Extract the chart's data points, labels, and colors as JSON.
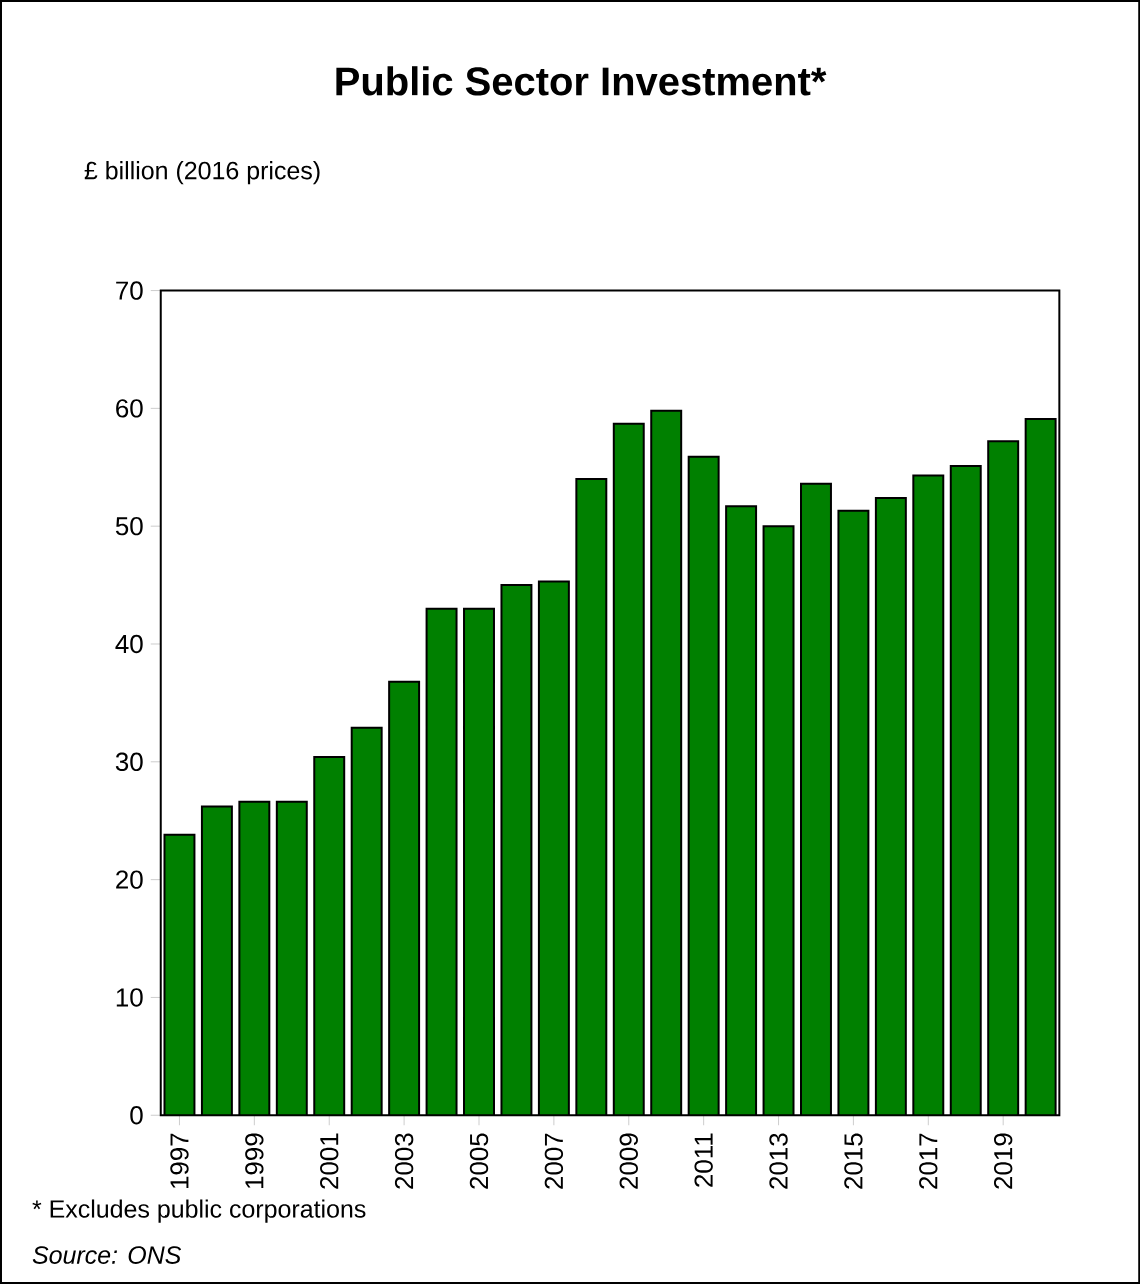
{
  "chart_data": {
    "type": "bar",
    "title": "Public Sector Investment*",
    "ylabel": "£ billion (2016 prices)",
    "categories": [
      "1997",
      null,
      "1999",
      null,
      "2001",
      null,
      "2003",
      null,
      "2005",
      null,
      "2007",
      null,
      "2009",
      null,
      "2011",
      null,
      "2013",
      null,
      "2015",
      null,
      "2017",
      null,
      "2019",
      null
    ],
    "values": [
      23.8,
      26.2,
      26.6,
      26.6,
      30.4,
      32.9,
      36.8,
      43.0,
      43.0,
      45.0,
      45.3,
      54.0,
      58.7,
      59.8,
      55.9,
      51.7,
      50.0,
      53.6,
      51.3,
      52.4,
      54.3,
      55.1,
      57.2,
      59.1
    ],
    "color": "#008000",
    "ylim": [
      0,
      70
    ],
    "yticks": [
      0,
      10,
      20,
      30,
      40,
      50,
      60,
      70
    ],
    "grid": false,
    "annotations": [
      "* Excludes public corporations",
      "*Source: ONS*"
    ]
  }
}
